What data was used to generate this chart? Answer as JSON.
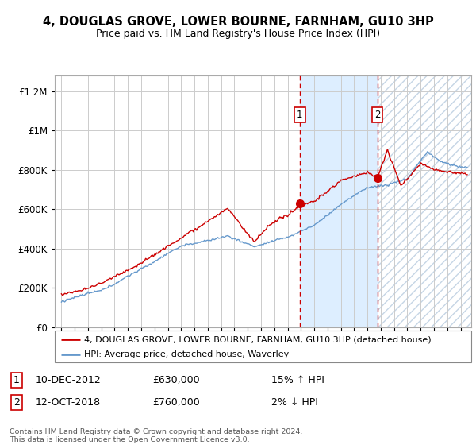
{
  "title1": "4, DOUGLAS GROVE, LOWER BOURNE, FARNHAM, GU10 3HP",
  "title2": "Price paid vs. HM Land Registry's House Price Index (HPI)",
  "ytick_values": [
    0,
    200000,
    400000,
    600000,
    800000,
    1000000,
    1200000
  ],
  "ylim": [
    0,
    1280000
  ],
  "sale1_x": 2012.917,
  "sale1_price": 630000,
  "sale2_x": 2018.75,
  "sale2_price": 760000,
  "legend_line1": "4, DOUGLAS GROVE, LOWER BOURNE, FARNHAM, GU10 3HP (detached house)",
  "legend_line2": "HPI: Average price, detached house, Waverley",
  "sale1_row": "10-DEC-2012    £630,000    15% ↑ HPI",
  "sale2_row": "12-OCT-2018    £760,000    2% ↓ HPI",
  "sale1_date": "10-DEC-2012",
  "sale1_amount": "£630,000",
  "sale1_hpi": "15% ↑ HPI",
  "sale2_date": "12-OCT-2018",
  "sale2_amount": "£760,000",
  "sale2_hpi": "2% ↓ HPI",
  "footer": "Contains HM Land Registry data © Crown copyright and database right 2024.\nThis data is licensed under the Open Government Licence v3.0.",
  "red_color": "#cc0000",
  "blue_color": "#6699cc",
  "shade_color": "#ddeeff",
  "hatch_color": "#aabbcc",
  "grid_color": "#cccccc",
  "xstart": 1994.5,
  "xend": 2025.8
}
